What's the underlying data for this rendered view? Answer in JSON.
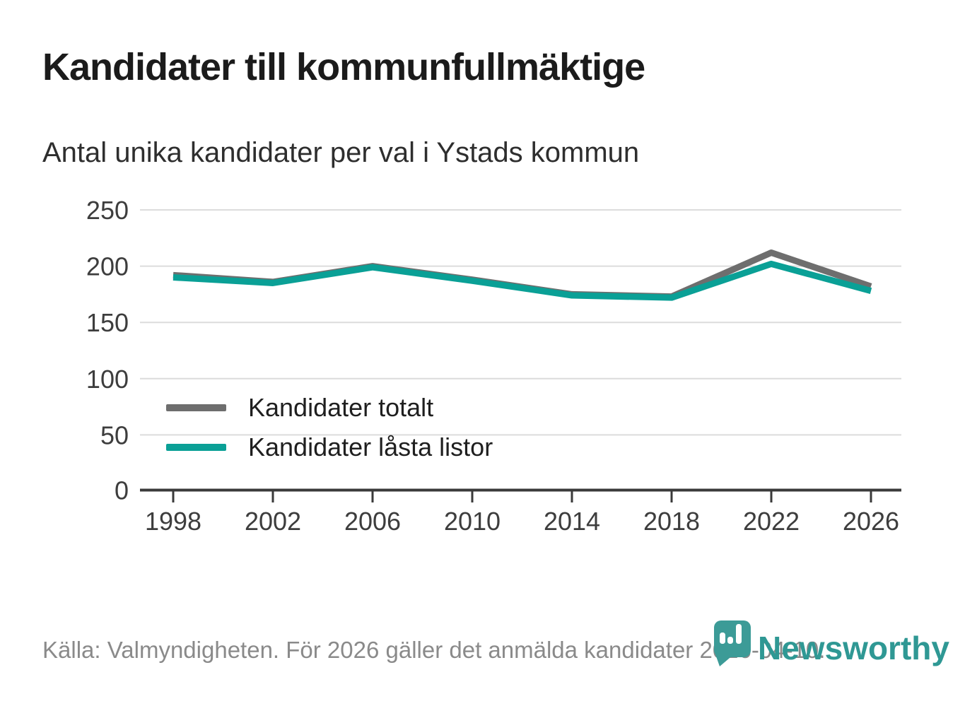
{
  "header": {
    "title": "Kandidater till kommunfullmäktige",
    "subtitle": "Antal unika kandidater per val i Ystads kommun"
  },
  "chart_data": {
    "type": "line",
    "title": "Kandidater till kommunfullmäktige",
    "subtitle": "Antal unika kandidater per val i Ystads kommun",
    "x": [
      1998,
      2002,
      2006,
      2010,
      2014,
      2018,
      2022,
      2026
    ],
    "series": [
      {
        "name": "Kandidater totalt",
        "color": "#6e6e6e",
        "values": [
          192,
          186,
          200,
          188,
          175,
          173,
          212,
          182
        ]
      },
      {
        "name": "Kandidater låsta listor",
        "color": "#0aa096",
        "values": [
          190,
          185,
          199,
          187,
          174,
          172,
          202,
          178
        ]
      }
    ],
    "xlabel": "",
    "ylabel": "",
    "ylim": [
      0,
      250
    ],
    "yticks": [
      0,
      50,
      100,
      150,
      200,
      250
    ],
    "grid": true,
    "legend_position": "inside-bottom-left",
    "gridline_color": "#dcdcdc",
    "axis_color": "#3a3a3a"
  },
  "footer": {
    "source": "Källa: Valmyndigheten. För 2026 gäller det anmälda kandidater 2026-04-10."
  },
  "logo": {
    "text": "Newsworthy",
    "pin_color": "#3c9b97",
    "text_color": "#2f9894"
  }
}
